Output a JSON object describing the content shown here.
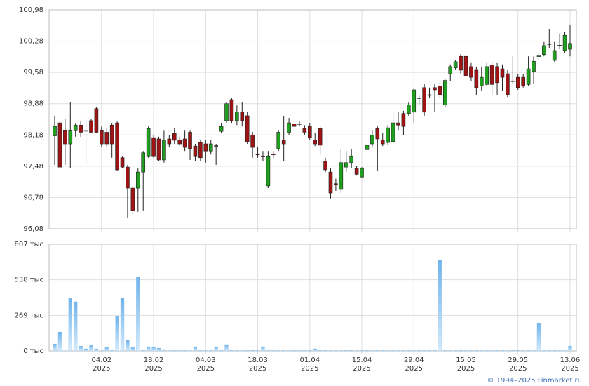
{
  "chart_data": [
    {
      "type": "candlestick",
      "open": [
        98.16,
        98.45,
        98.29,
        97.98,
        98.29,
        98.4,
        98.28,
        98.5,
        98.77,
        98.29,
        98.24,
        98.4,
        98.45,
        97.67,
        97.46,
        96.99,
        96.99,
        97.35,
        97.71,
        98.12,
        98.09,
        97.62,
        98.09,
        98.21,
        98.06,
        98.09,
        98.24,
        97.93,
        98.01,
        97.98,
        97.82,
        97.94,
        98.26,
        98.5,
        98.97,
        98.5,
        98.69,
        98.61,
        98.18,
        97.75,
        97.71,
        97.04,
        97.75,
        97.87,
        98.06,
        98.24,
        98.43,
        98.43,
        98.32,
        98.37,
        98.06,
        98.32,
        97.59,
        97.35,
        97.09,
        96.96,
        97.46,
        97.56,
        97.43,
        97.24,
        97.85,
        97.98,
        98.32,
        98.06,
        98.01,
        98.03,
        98.45,
        98.66,
        98.66,
        98.69,
        99.0,
        99.24,
        99.08,
        99.24,
        99.27,
        98.85,
        99.55,
        99.68,
        99.94,
        99.94,
        99.71,
        99.63,
        99.28,
        99.31,
        99.75,
        99.71,
        99.66,
        99.55,
        99.39,
        99.47,
        99.47,
        99.31,
        99.6,
        99.94,
        99.98,
        100.21,
        99.85,
        100.18,
        100.07,
        100.1
      ],
      "high": [
        98.61,
        98.48,
        98.53,
        98.92,
        98.45,
        98.5,
        98.53,
        98.53,
        98.8,
        98.37,
        98.33,
        98.45,
        98.48,
        97.71,
        97.51,
        97.04,
        97.43,
        97.82,
        98.37,
        98.17,
        98.14,
        98.29,
        98.17,
        98.33,
        98.14,
        98.29,
        98.29,
        97.98,
        98.06,
        98.06,
        98.06,
        97.98,
        98.45,
        98.92,
        99.0,
        98.84,
        98.92,
        98.69,
        98.25,
        97.9,
        97.82,
        97.82,
        97.82,
        98.29,
        98.61,
        98.56,
        98.48,
        98.5,
        98.4,
        98.45,
        98.22,
        98.37,
        97.67,
        97.43,
        97.2,
        97.87,
        97.82,
        97.87,
        97.48,
        97.46,
        97.98,
        98.29,
        98.37,
        98.22,
        98.4,
        98.69,
        98.69,
        98.72,
        98.92,
        99.24,
        99.08,
        99.32,
        99.24,
        99.32,
        99.35,
        99.44,
        99.76,
        99.86,
        99.99,
        99.99,
        99.79,
        99.71,
        99.71,
        99.79,
        99.82,
        99.79,
        99.76,
        99.63,
        99.94,
        99.55,
        99.55,
        99.94,
        99.94,
        100.02,
        100.26,
        100.54,
        100.26,
        100.45,
        100.49,
        100.65
      ],
      "low": [
        97.51,
        97.43,
        97.51,
        97.43,
        98.14,
        98.14,
        97.51,
        98.22,
        98.22,
        97.9,
        97.9,
        97.67,
        97.38,
        97.43,
        96.33,
        96.41,
        96.46,
        96.49,
        97.67,
        97.67,
        97.59,
        97.56,
        97.9,
        97.98,
        97.93,
        97.82,
        97.62,
        97.59,
        97.59,
        97.56,
        97.74,
        97.51,
        98.22,
        98.45,
        98.45,
        98.4,
        98.37,
        97.98,
        97.67,
        97.67,
        97.59,
        96.99,
        97.67,
        97.82,
        97.59,
        98.18,
        98.33,
        98.37,
        98.18,
        98.06,
        97.93,
        97.74,
        97.35,
        96.76,
        96.93,
        96.88,
        97.35,
        97.43,
        97.27,
        97.21,
        97.82,
        97.9,
        97.38,
        97.93,
        97.96,
        97.98,
        98.29,
        98.18,
        98.61,
        98.45,
        98.84,
        98.61,
        99.0,
        98.69,
        99.0,
        98.81,
        99.39,
        99.63,
        99.55,
        99.47,
        99.39,
        99.08,
        99.16,
        99.28,
        99.08,
        99.08,
        99.16,
        99.03,
        99.32,
        99.19,
        99.24,
        99.28,
        99.32,
        99.86,
        99.94,
        100.13,
        99.82,
        100.1,
        100.02,
        99.94
      ],
      "close": [
        98.37,
        97.46,
        97.98,
        98.29,
        98.4,
        98.24,
        98.27,
        98.24,
        98.24,
        97.98,
        97.98,
        97.98,
        97.4,
        97.46,
        96.99,
        96.49,
        97.35,
        97.78,
        98.32,
        97.71,
        97.62,
        98.06,
        97.98,
        98.06,
        97.98,
        97.9,
        97.87,
        97.71,
        97.67,
        97.82,
        97.98,
        97.93,
        98.37,
        98.88,
        98.5,
        98.69,
        98.5,
        98.03,
        97.9,
        97.74,
        97.7,
        97.71,
        97.74,
        98.24,
        97.98,
        98.45,
        98.37,
        98.42,
        98.24,
        98.12,
        97.98,
        97.95,
        97.4,
        96.88,
        97.08,
        97.56,
        97.56,
        97.71,
        97.3,
        97.43,
        97.95,
        98.18,
        98.09,
        97.98,
        98.34,
        98.45,
        98.4,
        98.37,
        98.85,
        99.19,
        99.01,
        98.69,
        99.07,
        99.19,
        99.08,
        99.4,
        99.71,
        99.82,
        99.63,
        99.5,
        99.47,
        99.24,
        99.47,
        99.71,
        99.31,
        99.35,
        99.47,
        99.08,
        99.38,
        99.24,
        99.28,
        99.66,
        99.83,
        99.95,
        100.18,
        100.22,
        100.07,
        100.19,
        100.41,
        100.23
      ],
      "up_color": "#1f9e1f",
      "down_color": "#9e1414",
      "ylim": [
        96.08,
        100.98
      ],
      "yticks": [
        {
          "value": 96.08,
          "label": "96,08"
        },
        {
          "value": 96.78,
          "label": "96,78"
        },
        {
          "value": 97.48,
          "label": "97,48"
        },
        {
          "value": 98.18,
          "label": "98,18"
        },
        {
          "value": 98.88,
          "label": "98,88"
        },
        {
          "value": 99.58,
          "label": "99,58"
        },
        {
          "value": 100.28,
          "label": "100,28"
        },
        {
          "value": 100.98,
          "label": "100,98"
        }
      ],
      "grid": true
    },
    {
      "type": "bar",
      "categories": [
        null,
        null,
        null,
        null,
        null,
        null,
        null,
        null,
        null,
        [
          "04.02",
          "2025"
        ],
        null,
        null,
        null,
        null,
        null,
        null,
        null,
        null,
        null,
        [
          "18.02",
          "2025"
        ],
        null,
        null,
        null,
        null,
        null,
        null,
        null,
        null,
        null,
        [
          "04.03",
          "2025"
        ],
        null,
        null,
        null,
        null,
        null,
        null,
        null,
        null,
        null,
        [
          "18.03",
          "2025"
        ],
        null,
        null,
        null,
        null,
        null,
        null,
        null,
        null,
        null,
        [
          "01.04",
          "2025"
        ],
        null,
        null,
        null,
        null,
        null,
        null,
        null,
        null,
        null,
        [
          "15.04",
          "2025"
        ],
        null,
        null,
        null,
        null,
        null,
        null,
        null,
        null,
        null,
        [
          "29.04",
          "2025"
        ],
        null,
        null,
        null,
        null,
        null,
        null,
        null,
        null,
        null,
        [
          "15.05",
          "2025"
        ],
        null,
        null,
        null,
        null,
        null,
        null,
        null,
        null,
        null,
        [
          "29.05",
          "2025"
        ],
        null,
        null,
        null,
        null,
        null,
        null,
        null,
        null,
        null,
        [
          "13.06",
          "2025"
        ]
      ],
      "values": [
        53,
        143,
        2,
        398,
        372,
        37,
        16,
        42,
        16,
        10,
        27,
        5,
        265,
        398,
        80,
        27,
        558,
        5,
        32,
        32,
        21,
        11,
        3,
        4,
        3,
        5,
        3,
        32,
        4,
        3,
        5,
        32,
        4,
        48,
        5,
        4,
        3,
        4,
        5,
        3,
        32,
        4,
        3,
        4,
        5,
        3,
        4,
        3,
        4,
        5,
        16,
        4,
        5,
        3,
        4,
        3,
        5,
        4,
        3,
        4,
        5,
        3,
        4,
        5,
        3,
        4,
        3,
        4,
        5,
        3,
        4,
        3,
        5,
        4,
        685,
        5,
        3,
        4,
        5,
        3,
        4,
        5,
        3,
        4,
        3,
        5,
        4,
        3,
        5,
        4,
        3,
        4,
        10,
        212,
        3,
        4,
        5,
        10,
        3,
        37
      ],
      "color": "#8cc4ee",
      "ylim": [
        0,
        807
      ],
      "yticks": [
        {
          "value": 0,
          "label": "0 тыс"
        },
        {
          "value": 269,
          "label": "269 тыс"
        },
        {
          "value": 538,
          "label": "538 тыс"
        },
        {
          "value": 807,
          "label": "807 тыс"
        }
      ],
      "grid": true
    }
  ],
  "footer": {
    "copyright": "© 1994–2025 Finmarket.ru"
  }
}
